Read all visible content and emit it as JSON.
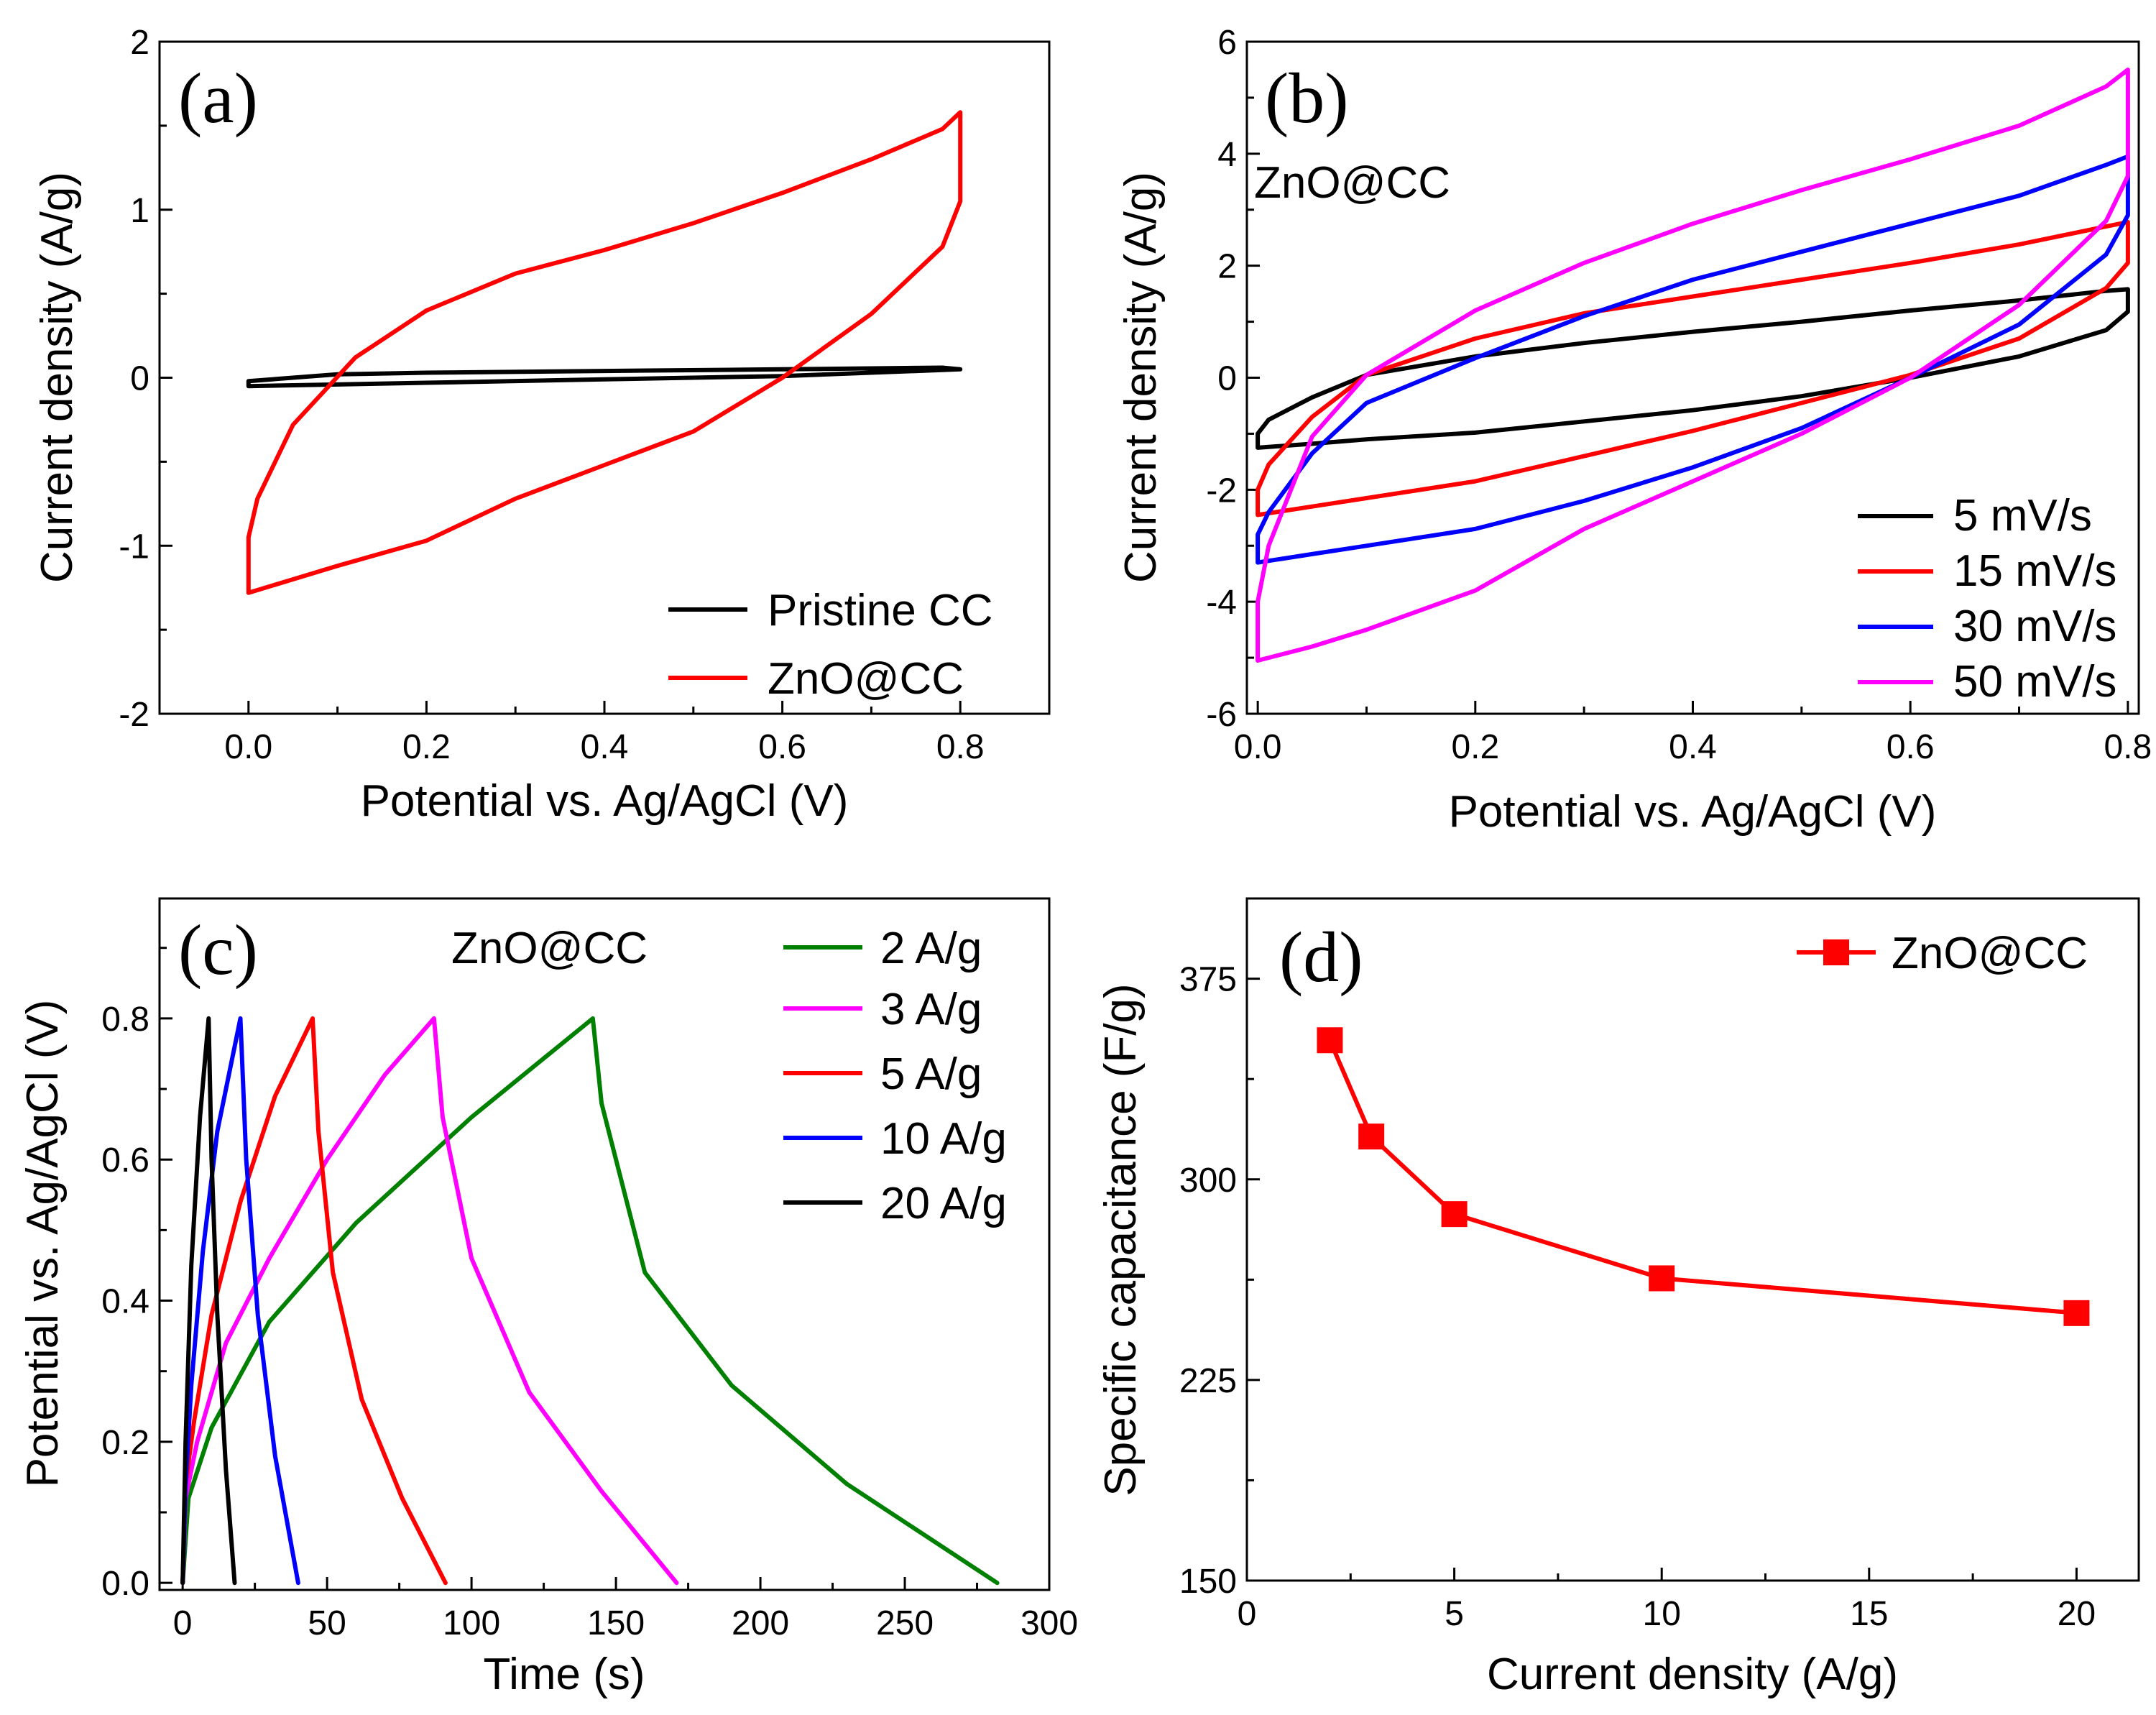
{
  "chart_data": [
    {
      "panel": "(a)",
      "type": "line",
      "subtype": "cyclic_voltammetry",
      "xlabel": "Potential vs. Ag/AgCl (V)",
      "ylabel": "Current density (A/g)",
      "xlim": [
        -0.1,
        0.9
      ],
      "ylim": [
        -2,
        2
      ],
      "xticks": [
        0.0,
        0.2,
        0.4,
        0.6,
        0.8
      ],
      "xticklabels": [
        "0.0",
        "0.2",
        "0.4",
        "0.6",
        "0.8"
      ],
      "yticks": [
        -2,
        -1,
        0,
        1,
        2
      ],
      "yticklabels": [
        "-2",
        "-1",
        "0",
        "1",
        "2"
      ],
      "legend_position": "bottom-right",
      "series": [
        {
          "name": "Pristine CC",
          "color": "#000000",
          "x": [
            0.0,
            0.1,
            0.2,
            0.4,
            0.6,
            0.8,
            0.78,
            0.6,
            0.4,
            0.2,
            0.1,
            0.0,
            0.0
          ],
          "y": [
            -0.05,
            -0.04,
            -0.03,
            -0.01,
            0.01,
            0.05,
            0.06,
            0.05,
            0.04,
            0.03,
            0.02,
            -0.02,
            -0.05
          ]
        },
        {
          "name": "ZnO@CC",
          "color": "#ff0000",
          "x": [
            0.0,
            0.05,
            0.1,
            0.2,
            0.3,
            0.4,
            0.5,
            0.6,
            0.7,
            0.78,
            0.8,
            0.8,
            0.78,
            0.7,
            0.6,
            0.5,
            0.4,
            0.3,
            0.2,
            0.12,
            0.05,
            0.01,
            0.0,
            0.0
          ],
          "y": [
            -1.28,
            -1.2,
            -1.12,
            -0.97,
            -0.72,
            -0.52,
            -0.32,
            0.0,
            0.38,
            0.78,
            1.05,
            1.58,
            1.48,
            1.3,
            1.1,
            0.92,
            0.76,
            0.62,
            0.4,
            0.12,
            -0.28,
            -0.72,
            -0.95,
            -1.28
          ]
        }
      ]
    },
    {
      "panel": "(b)",
      "type": "line",
      "subtype": "cyclic_voltammetry",
      "annotation": "ZnO@CC",
      "xlabel": "Potential vs. Ag/AgCl (V)",
      "ylabel": "Current density (A/g)",
      "xlim": [
        -0.01,
        0.81
      ],
      "ylim": [
        -6,
        6
      ],
      "xticks": [
        0.0,
        0.2,
        0.4,
        0.6,
        0.8
      ],
      "xticklabels": [
        "0.0",
        "0.2",
        "0.4",
        "0.6",
        "0.8"
      ],
      "yticks": [
        -6,
        -4,
        -2,
        0,
        2,
        4,
        6
      ],
      "yticklabels": [
        "-6",
        "-4",
        "-2",
        "0",
        "2",
        "4",
        "6"
      ],
      "legend_position": "bottom-right",
      "series": [
        {
          "name": "5 mV/s",
          "color": "#000000",
          "x": [
            0.0,
            0.05,
            0.1,
            0.2,
            0.3,
            0.4,
            0.5,
            0.6,
            0.7,
            0.78,
            0.8,
            0.8,
            0.78,
            0.7,
            0.6,
            0.5,
            0.4,
            0.3,
            0.2,
            0.1,
            0.05,
            0.01,
            0.0,
            0.0
          ],
          "y": [
            -1.25,
            -1.18,
            -1.1,
            -0.98,
            -0.78,
            -0.58,
            -0.33,
            0.0,
            0.38,
            0.85,
            1.18,
            1.58,
            1.55,
            1.38,
            1.2,
            1.0,
            0.82,
            0.62,
            0.38,
            0.05,
            -0.35,
            -0.75,
            -1.0,
            -1.25
          ]
        },
        {
          "name": "15 mV/s",
          "color": "#ff0000",
          "x": [
            0.0,
            0.05,
            0.1,
            0.2,
            0.3,
            0.4,
            0.5,
            0.6,
            0.7,
            0.78,
            0.8,
            0.8,
            0.78,
            0.7,
            0.6,
            0.5,
            0.4,
            0.3,
            0.2,
            0.1,
            0.05,
            0.01,
            0.0,
            0.0
          ],
          "y": [
            -2.45,
            -2.3,
            -2.15,
            -1.85,
            -1.4,
            -0.95,
            -0.45,
            0.05,
            0.7,
            1.6,
            2.05,
            2.78,
            2.7,
            2.38,
            2.05,
            1.75,
            1.45,
            1.15,
            0.7,
            0.05,
            -0.7,
            -1.55,
            -2.0,
            -2.45
          ]
        },
        {
          "name": "30 mV/s",
          "color": "#0000ff",
          "x": [
            0.0,
            0.05,
            0.1,
            0.2,
            0.3,
            0.4,
            0.5,
            0.6,
            0.7,
            0.78,
            0.8,
            0.8,
            0.78,
            0.7,
            0.6,
            0.5,
            0.4,
            0.3,
            0.2,
            0.1,
            0.05,
            0.01,
            0.0,
            0.0
          ],
          "y": [
            -3.3,
            -3.15,
            -3.0,
            -2.7,
            -2.2,
            -1.6,
            -0.9,
            0.0,
            0.95,
            2.2,
            2.9,
            3.95,
            3.8,
            3.25,
            2.75,
            2.25,
            1.75,
            1.1,
            0.35,
            -0.45,
            -1.35,
            -2.4,
            -2.8,
            -3.3
          ]
        },
        {
          "name": "50 mV/s",
          "color": "#ff00ff",
          "x": [
            0.0,
            0.05,
            0.1,
            0.2,
            0.3,
            0.4,
            0.5,
            0.6,
            0.7,
            0.78,
            0.8,
            0.8,
            0.78,
            0.7,
            0.6,
            0.5,
            0.4,
            0.3,
            0.2,
            0.1,
            0.05,
            0.01,
            0.0,
            0.0
          ],
          "y": [
            -5.05,
            -4.8,
            -4.5,
            -3.8,
            -2.7,
            -1.85,
            -1.0,
            0.0,
            1.3,
            2.8,
            3.6,
            5.5,
            5.2,
            4.5,
            3.9,
            3.35,
            2.75,
            2.05,
            1.2,
            0.05,
            -1.05,
            -3.0,
            -4.0,
            -5.05
          ]
        }
      ]
    },
    {
      "panel": "(c)",
      "type": "line",
      "subtype": "galvanostatic_charge_discharge",
      "annotation": "ZnO@CC",
      "xlabel": "Time (s)",
      "ylabel": "Potential vs. Ag/AgCl (V)",
      "xlim": [
        -8,
        300
      ],
      "ylim": [
        -0.01,
        0.97
      ],
      "xticks": [
        0,
        50,
        100,
        150,
        200,
        250,
        300
      ],
      "xticklabels": [
        "0",
        "50",
        "100",
        "150",
        "200",
        "250",
        "300"
      ],
      "yticks": [
        0.0,
        0.2,
        0.4,
        0.6,
        0.8
      ],
      "yticklabels": [
        "0.0",
        "0.2",
        "0.4",
        "0.6",
        "0.8"
      ],
      "legend_position": "top-right",
      "series": [
        {
          "name": "2 A/g",
          "color": "#008000",
          "x": [
            0,
            2,
            10,
            30,
            60,
            100,
            142,
            142,
            145,
            160,
            190,
            230,
            282
          ],
          "y": [
            0.0,
            0.12,
            0.22,
            0.37,
            0.51,
            0.66,
            0.8,
            0.8,
            0.68,
            0.44,
            0.28,
            0.14,
            0.0
          ]
        },
        {
          "name": "3 A/g",
          "color": "#ff00ff",
          "x": [
            0,
            1,
            5,
            15,
            30,
            50,
            70,
            87,
            87,
            90,
            100,
            120,
            145,
            171
          ],
          "y": [
            0.0,
            0.12,
            0.2,
            0.34,
            0.46,
            0.6,
            0.72,
            0.8,
            0.8,
            0.66,
            0.46,
            0.27,
            0.13,
            0.0
          ]
        },
        {
          "name": "5 A/g",
          "color": "#ff0000",
          "x": [
            0,
            1,
            4,
            10,
            20,
            32,
            45,
            45,
            47,
            52,
            62,
            76,
            91
          ],
          "y": [
            0.0,
            0.14,
            0.23,
            0.38,
            0.54,
            0.69,
            0.8,
            0.8,
            0.64,
            0.44,
            0.26,
            0.12,
            0.0
          ]
        },
        {
          "name": "10 A/g",
          "color": "#0000ff",
          "x": [
            0,
            1,
            3,
            7,
            12,
            20,
            20,
            22,
            26,
            32,
            40
          ],
          "y": [
            0.0,
            0.14,
            0.28,
            0.47,
            0.64,
            0.8,
            0.8,
            0.6,
            0.38,
            0.18,
            0.0
          ]
        },
        {
          "name": "20 A/g",
          "color": "#000000",
          "x": [
            0,
            1,
            3,
            6,
            9,
            9,
            10,
            12,
            15,
            18
          ],
          "y": [
            0.0,
            0.2,
            0.45,
            0.66,
            0.8,
            0.8,
            0.6,
            0.38,
            0.16,
            0.0
          ]
        }
      ]
    },
    {
      "panel": "(d)",
      "type": "line",
      "subtype": "line_with_markers",
      "xlabel": "Current density (A/g)",
      "ylabel": "Specific capacitance (F/g)",
      "xlim": [
        0,
        21.5
      ],
      "ylim": [
        150,
        405
      ],
      "xticks": [
        0,
        5,
        10,
        15,
        20
      ],
      "xticklabels": [
        "0",
        "5",
        "10",
        "15",
        "20"
      ],
      "yticks": [
        150,
        225,
        300,
        375
      ],
      "yticklabels": [
        "150",
        "225",
        "300",
        "375"
      ],
      "legend_position": "top-right",
      "series": [
        {
          "name": "ZnO@CC",
          "color": "#ff0000",
          "marker": "square",
          "x": [
            2,
            3,
            5,
            10,
            20
          ],
          "y": [
            352,
            316,
            287,
            263,
            250
          ]
        }
      ]
    }
  ]
}
